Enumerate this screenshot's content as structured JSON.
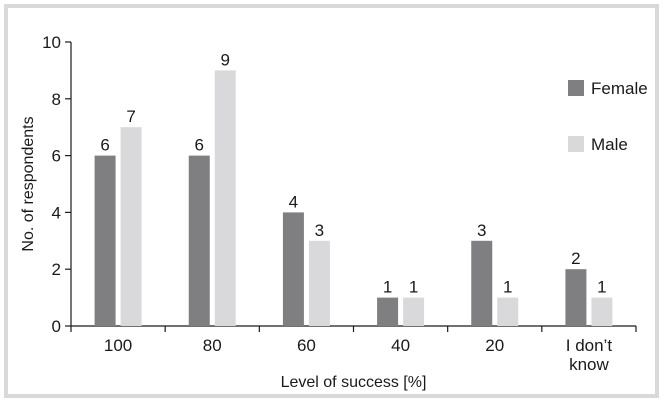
{
  "chart_data": {
    "type": "bar",
    "categories": [
      [
        "100"
      ],
      [
        "80"
      ],
      [
        "60"
      ],
      [
        "40"
      ],
      [
        "20"
      ],
      [
        "I don’t",
        "know"
      ]
    ],
    "series": [
      {
        "name": "Female",
        "color": "#7f7f82",
        "values": [
          6,
          6,
          4,
          1,
          3,
          2
        ]
      },
      {
        "name": "Male",
        "color": "#d9d9db",
        "values": [
          7,
          9,
          3,
          1,
          1,
          1
        ]
      }
    ],
    "xlabel": "Level of success [%]",
    "ylabel": "No. of respondents",
    "ylim": [
      0,
      10
    ],
    "yticks": [
      0,
      2,
      4,
      6,
      8,
      10
    ],
    "grid": false,
    "legend_position": "top-right"
  }
}
